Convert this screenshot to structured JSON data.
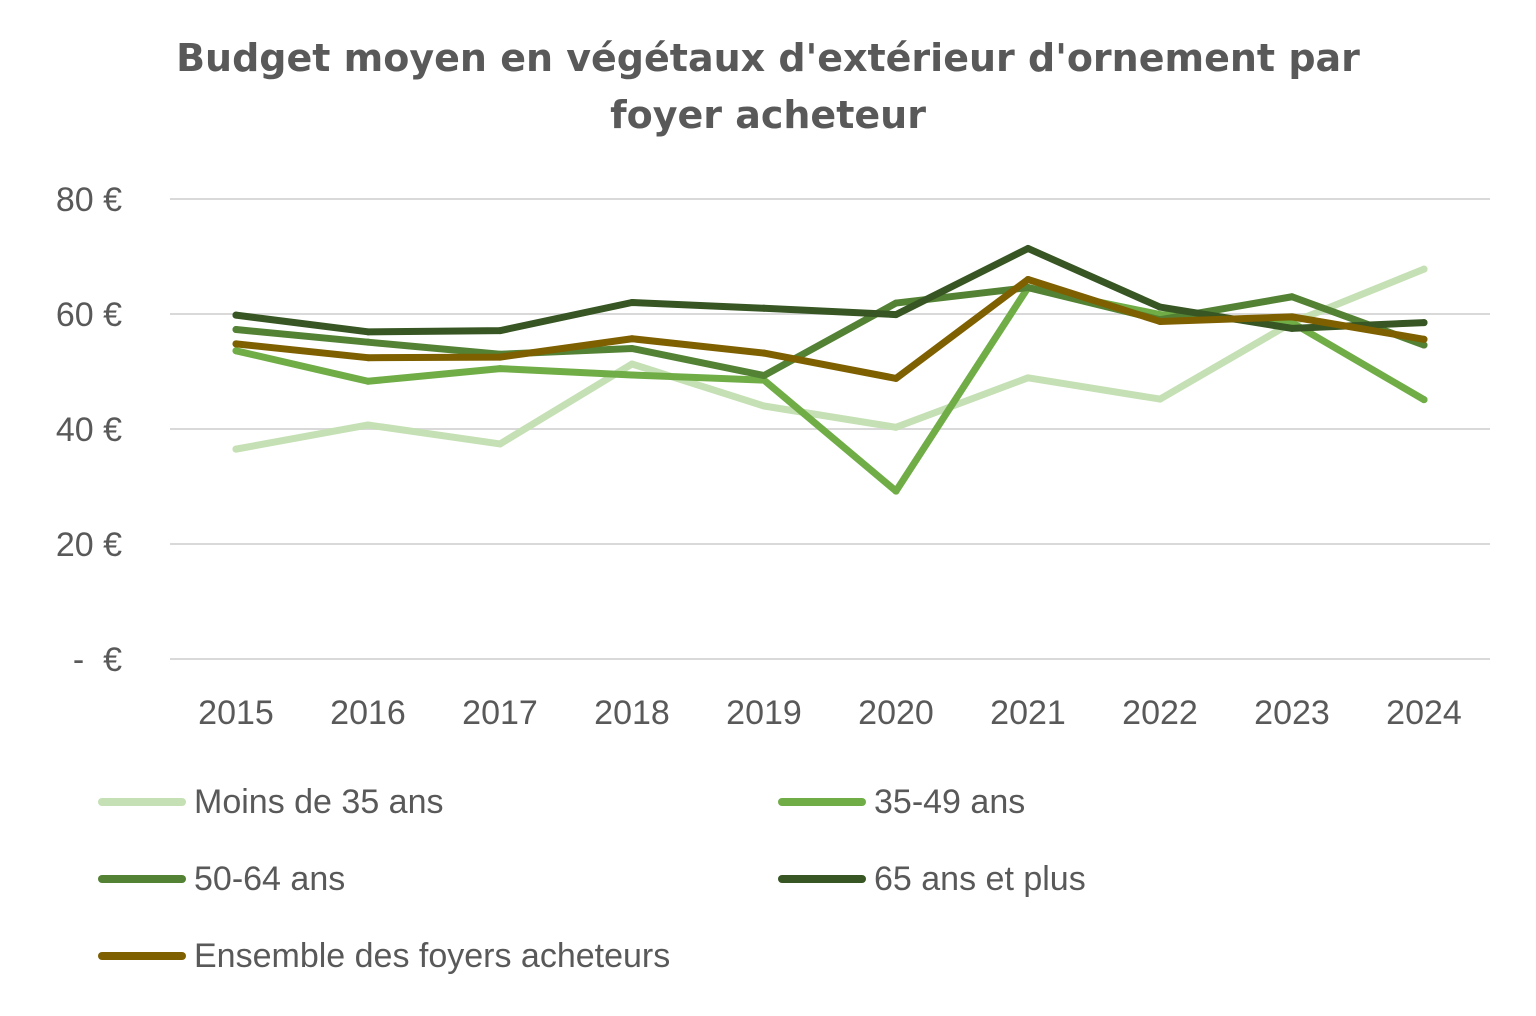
{
  "chart_data": {
    "type": "line",
    "title_lines": [
      "Budget moyen en végétaux d'extérieur d'ornement par",
      "foyer acheteur"
    ],
    "categories": [
      "2015",
      "2016",
      "2017",
      "2018",
      "2019",
      "2020",
      "2021",
      "2022",
      "2023",
      "2024"
    ],
    "y_ticks": [
      {
        "value": 0,
        "label": "-  €"
      },
      {
        "value": 20,
        "label": "20 €"
      },
      {
        "value": 40,
        "label": "40 €"
      },
      {
        "value": 60,
        "label": "60 €"
      },
      {
        "value": 80,
        "label": "80 €"
      }
    ],
    "ylim": [
      0,
      80
    ],
    "grid": "horizontal",
    "legend_position": "bottom",
    "series": [
      {
        "name": "Moins de 35 ans",
        "color": "#c5e0b4",
        "values": [
          36.5,
          40.7,
          37.4,
          51.3,
          44.0,
          40.3,
          48.9,
          45.2,
          58.5,
          67.8
        ]
      },
      {
        "name": "35-49 ans",
        "color": "#70ad47",
        "values": [
          53.6,
          48.3,
          50.5,
          49.4,
          48.5,
          29.2,
          64.6,
          59.9,
          58.5,
          45.1
        ]
      },
      {
        "name": "50-64 ans",
        "color": "#548235",
        "values": [
          57.3,
          55.1,
          53.0,
          54.0,
          49.3,
          61.9,
          64.6,
          59.0,
          63.0,
          54.6
        ]
      },
      {
        "name": "65 ans et plus",
        "color": "#375623",
        "values": [
          59.8,
          56.9,
          57.1,
          62.0,
          61.0,
          59.9,
          71.4,
          61.2,
          57.5,
          58.5
        ]
      },
      {
        "name": "Ensemble des foyers acheteurs",
        "color": "#7f6000",
        "values": [
          54.8,
          52.4,
          52.5,
          55.7,
          53.2,
          48.8,
          66.0,
          58.7,
          59.5,
          55.6
        ]
      }
    ]
  }
}
